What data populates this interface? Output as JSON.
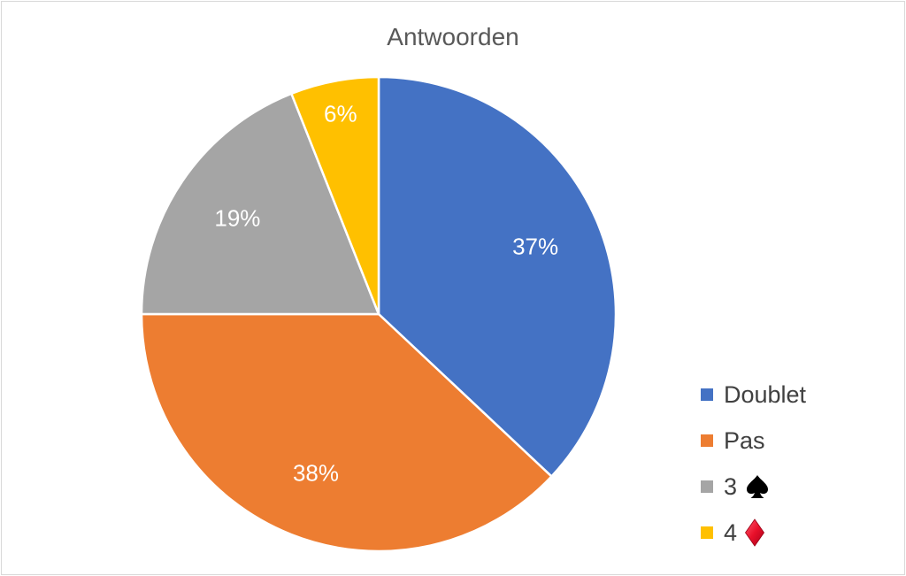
{
  "chart_data": {
    "type": "pie",
    "title": "Antwoorden",
    "slices": [
      {
        "label": "Doublet",
        "value": 37,
        "display": "37%",
        "color": "#4472C4"
      },
      {
        "label": "Pas",
        "value": 38,
        "display": "38%",
        "color": "#ED7D31"
      },
      {
        "label": "3",
        "suit": "spade",
        "value": 19,
        "display": "19%",
        "color": "#A5A5A5"
      },
      {
        "label": "4",
        "suit": "diamond",
        "value": 6,
        "display": "6%",
        "color": "#FFC000"
      }
    ],
    "start": "12 o'clock",
    "direction": "clockwise",
    "legend_position": "bottom-right"
  },
  "icons": {
    "spade": "spade-icon",
    "diamond": "diamond-icon"
  },
  "suit_colors": {
    "spade": "#000000",
    "diamond": "#E8102A"
  }
}
